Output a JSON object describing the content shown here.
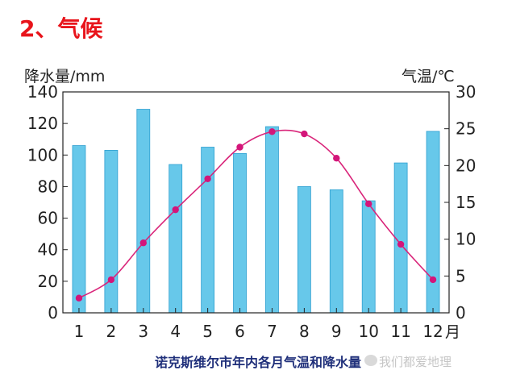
{
  "heading": "2、气候",
  "chart_data": {
    "type": "bar+line",
    "caption": "诺克斯维尔市年内各月气温和降水量",
    "categories": [
      "1",
      "2",
      "3",
      "4",
      "5",
      "6",
      "7",
      "8",
      "9",
      "10",
      "11",
      "12"
    ],
    "x_suffix": "月",
    "left_axis": {
      "label": "降水量/mm",
      "ticks": [
        0,
        20,
        40,
        60,
        80,
        100,
        120,
        140
      ],
      "ylim": [
        0,
        140
      ]
    },
    "right_axis": {
      "label": "气温/℃",
      "ticks": [
        0,
        5,
        10,
        15,
        20,
        25,
        30
      ],
      "ylim": [
        0,
        30
      ]
    },
    "series": [
      {
        "kind": "bar",
        "axis": "left",
        "values": [
          106,
          103,
          129,
          94,
          105,
          101,
          118,
          80,
          78,
          71,
          95,
          115
        ]
      },
      {
        "kind": "line",
        "axis": "right",
        "values": [
          2.0,
          4.5,
          9.5,
          14.0,
          18.2,
          22.5,
          24.6,
          24.3,
          21.0,
          14.8,
          9.3,
          4.5
        ]
      }
    ],
    "colors": {
      "bar": "#67c8ea",
      "bar_edge": "#2e9fd0",
      "line": "#d9257a",
      "marker": "#d4157a"
    }
  },
  "watermark": "我们都爱地理"
}
